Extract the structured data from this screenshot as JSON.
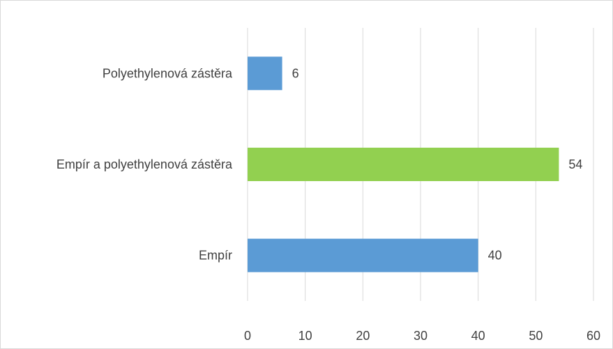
{
  "chart_data": {
    "type": "bar",
    "orientation": "horizontal",
    "categories": [
      "Polyethylenová zástěra",
      "Empír a polyethylenová zástěra",
      "Empír"
    ],
    "values": [
      6,
      54,
      40
    ],
    "bar_colors": [
      "#5b9bd5",
      "#92d050",
      "#5b9bd5"
    ],
    "data_labels": [
      "6",
      "54",
      "40"
    ],
    "xlim": [
      0,
      60
    ],
    "x_ticks": [
      0,
      10,
      20,
      30,
      40,
      50,
      60
    ],
    "x_tick_labels": [
      "0",
      "10",
      "20",
      "30",
      "40",
      "50",
      "60"
    ],
    "title": "",
    "xlabel": "",
    "ylabel": "",
    "grid": "vertical",
    "legend": "none",
    "gridline_color": "#d9d9d9",
    "text_color": "#404040"
  }
}
